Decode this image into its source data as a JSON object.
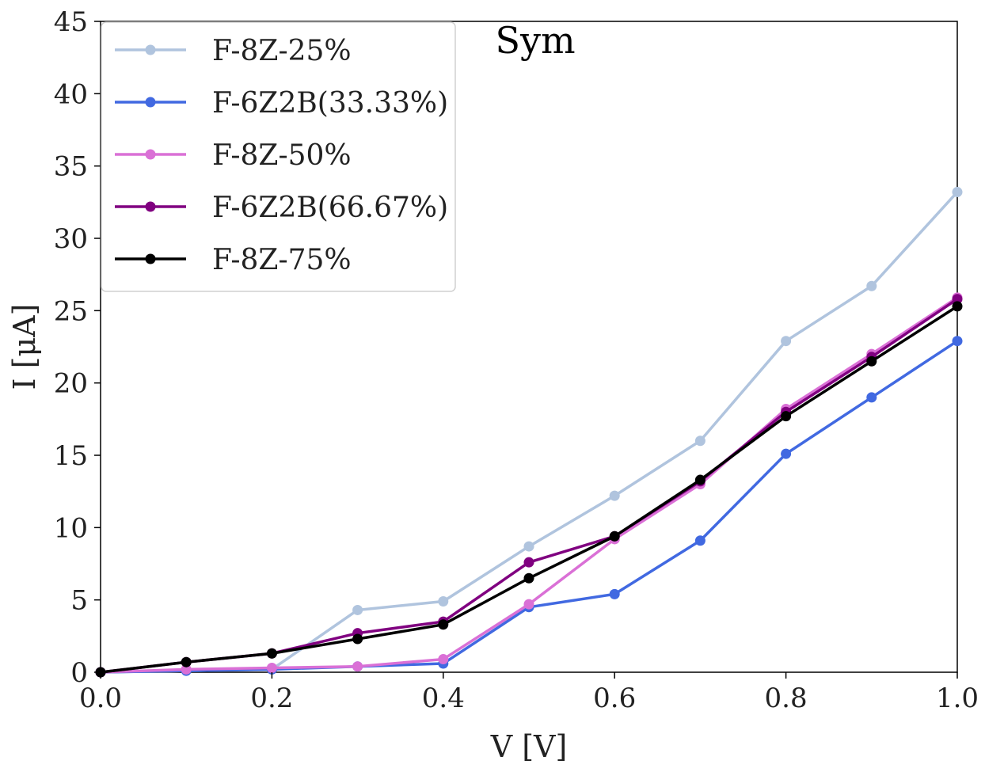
{
  "chart_data": {
    "type": "line",
    "title": "Sym",
    "xlabel": "V [V]",
    "ylabel": "I [μA]",
    "xlim": [
      0.0,
      1.0
    ],
    "ylim": [
      0,
      45
    ],
    "x": [
      0.0,
      0.1,
      0.2,
      0.3,
      0.4,
      0.5,
      0.6,
      0.7,
      0.8,
      0.9,
      1.0
    ],
    "xticks": [
      "0.0",
      "0.2",
      "0.4",
      "0.6",
      "0.8",
      "1.0"
    ],
    "yticks": [
      "0",
      "5",
      "10",
      "15",
      "20",
      "25",
      "30",
      "35",
      "40",
      "45"
    ],
    "legend_position": "top-left",
    "grid": false,
    "series": [
      {
        "name": "F-8Z-25%",
        "color": "#b0c4de",
        "values": [
          0.0,
          0.1,
          0.2,
          4.3,
          4.9,
          8.7,
          12.2,
          16.0,
          22.9,
          26.7,
          33.2
        ]
      },
      {
        "name": "F-6Z2B(33.33%)",
        "color": "#4169e1",
        "values": [
          0.0,
          0.1,
          0.2,
          0.4,
          0.6,
          4.5,
          5.4,
          9.1,
          15.1,
          19.0,
          22.9
        ]
      },
      {
        "name": "F-8Z-50%",
        "color": "#da70d6",
        "values": [
          0.0,
          0.2,
          0.3,
          0.4,
          0.9,
          4.7,
          9.2,
          13.0,
          18.2,
          22.0,
          25.9
        ]
      },
      {
        "name": "F-6Z2B(66.67%)",
        "color": "#800080",
        "values": [
          0.0,
          0.7,
          1.3,
          2.7,
          3.5,
          7.6,
          9.4,
          13.2,
          18.0,
          21.8,
          25.8
        ]
      },
      {
        "name": "F-8Z-75%",
        "color": "#000000",
        "values": [
          0.0,
          0.7,
          1.3,
          2.3,
          3.3,
          6.5,
          9.4,
          13.3,
          17.7,
          21.5,
          25.3
        ]
      }
    ]
  }
}
